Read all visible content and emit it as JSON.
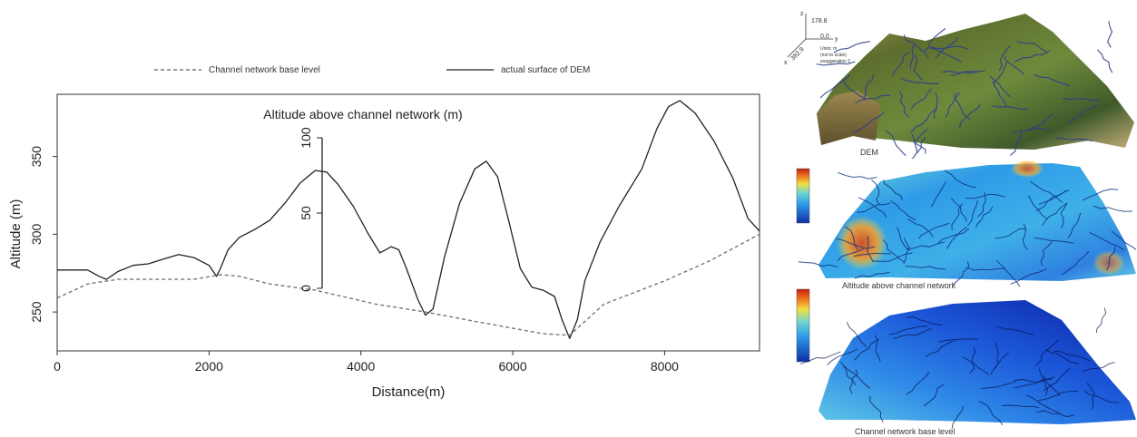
{
  "chart_data": [
    {
      "type": "line",
      "title": "Altitude above channel network (m)",
      "xlabel": "Distance(m)",
      "ylabel": "Altitude (m)",
      "xlim": [
        0,
        9250
      ],
      "ylim": [
        225,
        390
      ],
      "xticks": [
        0,
        2000,
        4000,
        6000,
        8000
      ],
      "yticks": [
        250,
        300,
        350
      ],
      "grid": false,
      "legend": {
        "placement": "top",
        "entries": [
          "Channel network base level",
          "actual surface of DEM"
        ]
      },
      "series": [
        {
          "name": "actual surface of DEM",
          "style": "solid",
          "points": [
            [
              0,
              277
            ],
            [
              400,
              277
            ],
            [
              550,
              273
            ],
            [
              650,
              271
            ],
            [
              800,
              276
            ],
            [
              1000,
              280
            ],
            [
              1200,
              281
            ],
            [
              1400,
              284
            ],
            [
              1600,
              287
            ],
            [
              1800,
              285
            ],
            [
              2000,
              280
            ],
            [
              2100,
              273
            ],
            [
              2150,
              278
            ],
            [
              2250,
              290
            ],
            [
              2400,
              298
            ],
            [
              2600,
              303
            ],
            [
              2800,
              309
            ],
            [
              3000,
              320
            ],
            [
              3200,
              333
            ],
            [
              3400,
              341
            ],
            [
              3550,
              340
            ],
            [
              3700,
              332
            ],
            [
              3900,
              318
            ],
            [
              4100,
              300
            ],
            [
              4250,
              288
            ],
            [
              4400,
              292
            ],
            [
              4500,
              290
            ],
            [
              4600,
              278
            ],
            [
              4750,
              258
            ],
            [
              4850,
              248
            ],
            [
              4950,
              252
            ],
            [
              5100,
              285
            ],
            [
              5300,
              320
            ],
            [
              5500,
              342
            ],
            [
              5650,
              347
            ],
            [
              5800,
              337
            ],
            [
              5950,
              308
            ],
            [
              6100,
              278
            ],
            [
              6250,
              266
            ],
            [
              6400,
              264
            ],
            [
              6550,
              260
            ],
            [
              6650,
              245
            ],
            [
              6750,
              233
            ],
            [
              6850,
              245
            ],
            [
              6950,
              270
            ],
            [
              7150,
              295
            ],
            [
              7400,
              318
            ],
            [
              7700,
              342
            ],
            [
              7900,
              368
            ],
            [
              8050,
              382
            ],
            [
              8200,
              386
            ],
            [
              8400,
              378
            ],
            [
              8650,
              360
            ],
            [
              8900,
              336
            ],
            [
              9100,
              310
            ],
            [
              9250,
              302
            ]
          ]
        },
        {
          "name": "Channel network base level",
          "style": "dashed",
          "points": [
            [
              0,
              259
            ],
            [
              400,
              268
            ],
            [
              800,
              271
            ],
            [
              1200,
              271
            ],
            [
              1800,
              271
            ],
            [
              2150,
              274
            ],
            [
              2400,
              273
            ],
            [
              2800,
              268
            ],
            [
              3400,
              264
            ],
            [
              4200,
              255
            ],
            [
              4850,
              250
            ],
            [
              5500,
              244
            ],
            [
              6400,
              236
            ],
            [
              6750,
              235
            ],
            [
              7200,
              255
            ],
            [
              8000,
              270
            ],
            [
              8600,
              283
            ],
            [
              9250,
              300
            ]
          ]
        }
      ],
      "inset_scale": {
        "label": "Altitude above channel network (m)",
        "ticks": [
          0,
          50,
          100
        ]
      }
    }
  ],
  "panels": {
    "dem": {
      "caption": "DEM",
      "axis_labels": {
        "z": "z",
        "z_value": "178.8",
        "origin": "0,0",
        "y": "y",
        "x": "x",
        "x_value": "382.9"
      },
      "note_lines": [
        "Units: m",
        "(not to scale)",
        "exaggeration 2"
      ],
      "colors": [
        "#3a4a22",
        "#6b7a36",
        "#a79a52",
        "#d7c58a",
        "#2d3e8c"
      ]
    },
    "altitude_above": {
      "caption": "Altitude above channel network",
      "colors": [
        "#0d2fa8",
        "#2f9be8",
        "#6ed6d0",
        "#f0e040",
        "#f07820",
        "#c81e10"
      ]
    },
    "base_level": {
      "caption": "Channel network base level",
      "colors": [
        "#0c1fa0",
        "#1b56d8",
        "#2f8ae8",
        "#5fc9e6",
        "#b8eef0"
      ]
    }
  }
}
